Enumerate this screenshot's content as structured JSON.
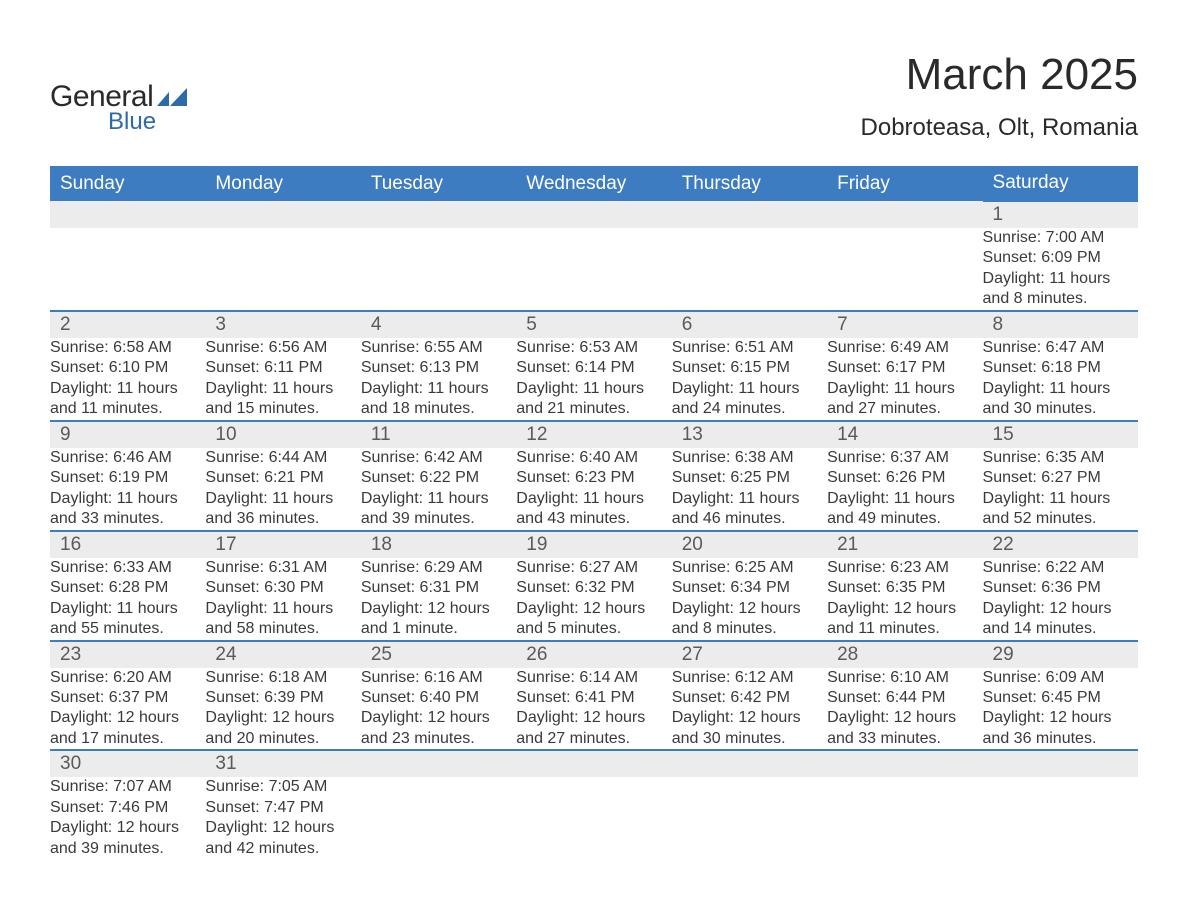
{
  "brand": {
    "word1": "General",
    "word2": "Blue",
    "text_color": "#2a2a2a",
    "accent_color": "#2f6aa8"
  },
  "title": {
    "month_year": "March 2025",
    "location": "Dobroteasa, Olt, Romania"
  },
  "calendar": {
    "header_bg": "#3d7cc0",
    "header_fg": "#ffffff",
    "daynum_bg": "#ececec",
    "border_color": "#3d7cc0",
    "text_color": "#3a3a3a",
    "font_size_header": 19,
    "font_size_daynum": 19,
    "font_size_detail": 16,
    "columns": [
      "Sunday",
      "Monday",
      "Tuesday",
      "Wednesday",
      "Thursday",
      "Friday",
      "Saturday"
    ],
    "weeks": [
      [
        null,
        null,
        null,
        null,
        null,
        null,
        {
          "n": "1",
          "sunrise": "7:00 AM",
          "sunset": "6:09 PM",
          "daylight": "11 hours and 8 minutes."
        }
      ],
      [
        {
          "n": "2",
          "sunrise": "6:58 AM",
          "sunset": "6:10 PM",
          "daylight": "11 hours and 11 minutes."
        },
        {
          "n": "3",
          "sunrise": "6:56 AM",
          "sunset": "6:11 PM",
          "daylight": "11 hours and 15 minutes."
        },
        {
          "n": "4",
          "sunrise": "6:55 AM",
          "sunset": "6:13 PM",
          "daylight": "11 hours and 18 minutes."
        },
        {
          "n": "5",
          "sunrise": "6:53 AM",
          "sunset": "6:14 PM",
          "daylight": "11 hours and 21 minutes."
        },
        {
          "n": "6",
          "sunrise": "6:51 AM",
          "sunset": "6:15 PM",
          "daylight": "11 hours and 24 minutes."
        },
        {
          "n": "7",
          "sunrise": "6:49 AM",
          "sunset": "6:17 PM",
          "daylight": "11 hours and 27 minutes."
        },
        {
          "n": "8",
          "sunrise": "6:47 AM",
          "sunset": "6:18 PM",
          "daylight": "11 hours and 30 minutes."
        }
      ],
      [
        {
          "n": "9",
          "sunrise": "6:46 AM",
          "sunset": "6:19 PM",
          "daylight": "11 hours and 33 minutes."
        },
        {
          "n": "10",
          "sunrise": "6:44 AM",
          "sunset": "6:21 PM",
          "daylight": "11 hours and 36 minutes."
        },
        {
          "n": "11",
          "sunrise": "6:42 AM",
          "sunset": "6:22 PM",
          "daylight": "11 hours and 39 minutes."
        },
        {
          "n": "12",
          "sunrise": "6:40 AM",
          "sunset": "6:23 PM",
          "daylight": "11 hours and 43 minutes."
        },
        {
          "n": "13",
          "sunrise": "6:38 AM",
          "sunset": "6:25 PM",
          "daylight": "11 hours and 46 minutes."
        },
        {
          "n": "14",
          "sunrise": "6:37 AM",
          "sunset": "6:26 PM",
          "daylight": "11 hours and 49 minutes."
        },
        {
          "n": "15",
          "sunrise": "6:35 AM",
          "sunset": "6:27 PM",
          "daylight": "11 hours and 52 minutes."
        }
      ],
      [
        {
          "n": "16",
          "sunrise": "6:33 AM",
          "sunset": "6:28 PM",
          "daylight": "11 hours and 55 minutes."
        },
        {
          "n": "17",
          "sunrise": "6:31 AM",
          "sunset": "6:30 PM",
          "daylight": "11 hours and 58 minutes."
        },
        {
          "n": "18",
          "sunrise": "6:29 AM",
          "sunset": "6:31 PM",
          "daylight": "12 hours and 1 minute."
        },
        {
          "n": "19",
          "sunrise": "6:27 AM",
          "sunset": "6:32 PM",
          "daylight": "12 hours and 5 minutes."
        },
        {
          "n": "20",
          "sunrise": "6:25 AM",
          "sunset": "6:34 PM",
          "daylight": "12 hours and 8 minutes."
        },
        {
          "n": "21",
          "sunrise": "6:23 AM",
          "sunset": "6:35 PM",
          "daylight": "12 hours and 11 minutes."
        },
        {
          "n": "22",
          "sunrise": "6:22 AM",
          "sunset": "6:36 PM",
          "daylight": "12 hours and 14 minutes."
        }
      ],
      [
        {
          "n": "23",
          "sunrise": "6:20 AM",
          "sunset": "6:37 PM",
          "daylight": "12 hours and 17 minutes."
        },
        {
          "n": "24",
          "sunrise": "6:18 AM",
          "sunset": "6:39 PM",
          "daylight": "12 hours and 20 minutes."
        },
        {
          "n": "25",
          "sunrise": "6:16 AM",
          "sunset": "6:40 PM",
          "daylight": "12 hours and 23 minutes."
        },
        {
          "n": "26",
          "sunrise": "6:14 AM",
          "sunset": "6:41 PM",
          "daylight": "12 hours and 27 minutes."
        },
        {
          "n": "27",
          "sunrise": "6:12 AM",
          "sunset": "6:42 PM",
          "daylight": "12 hours and 30 minutes."
        },
        {
          "n": "28",
          "sunrise": "6:10 AM",
          "sunset": "6:44 PM",
          "daylight": "12 hours and 33 minutes."
        },
        {
          "n": "29",
          "sunrise": "6:09 AM",
          "sunset": "6:45 PM",
          "daylight": "12 hours and 36 minutes."
        }
      ],
      [
        {
          "n": "30",
          "sunrise": "7:07 AM",
          "sunset": "7:46 PM",
          "daylight": "12 hours and 39 minutes."
        },
        {
          "n": "31",
          "sunrise": "7:05 AM",
          "sunset": "7:47 PM",
          "daylight": "12 hours and 42 minutes."
        },
        null,
        null,
        null,
        null,
        null
      ]
    ],
    "labels": {
      "sunrise": "Sunrise: ",
      "sunset": "Sunset: ",
      "daylight": "Daylight: "
    }
  }
}
